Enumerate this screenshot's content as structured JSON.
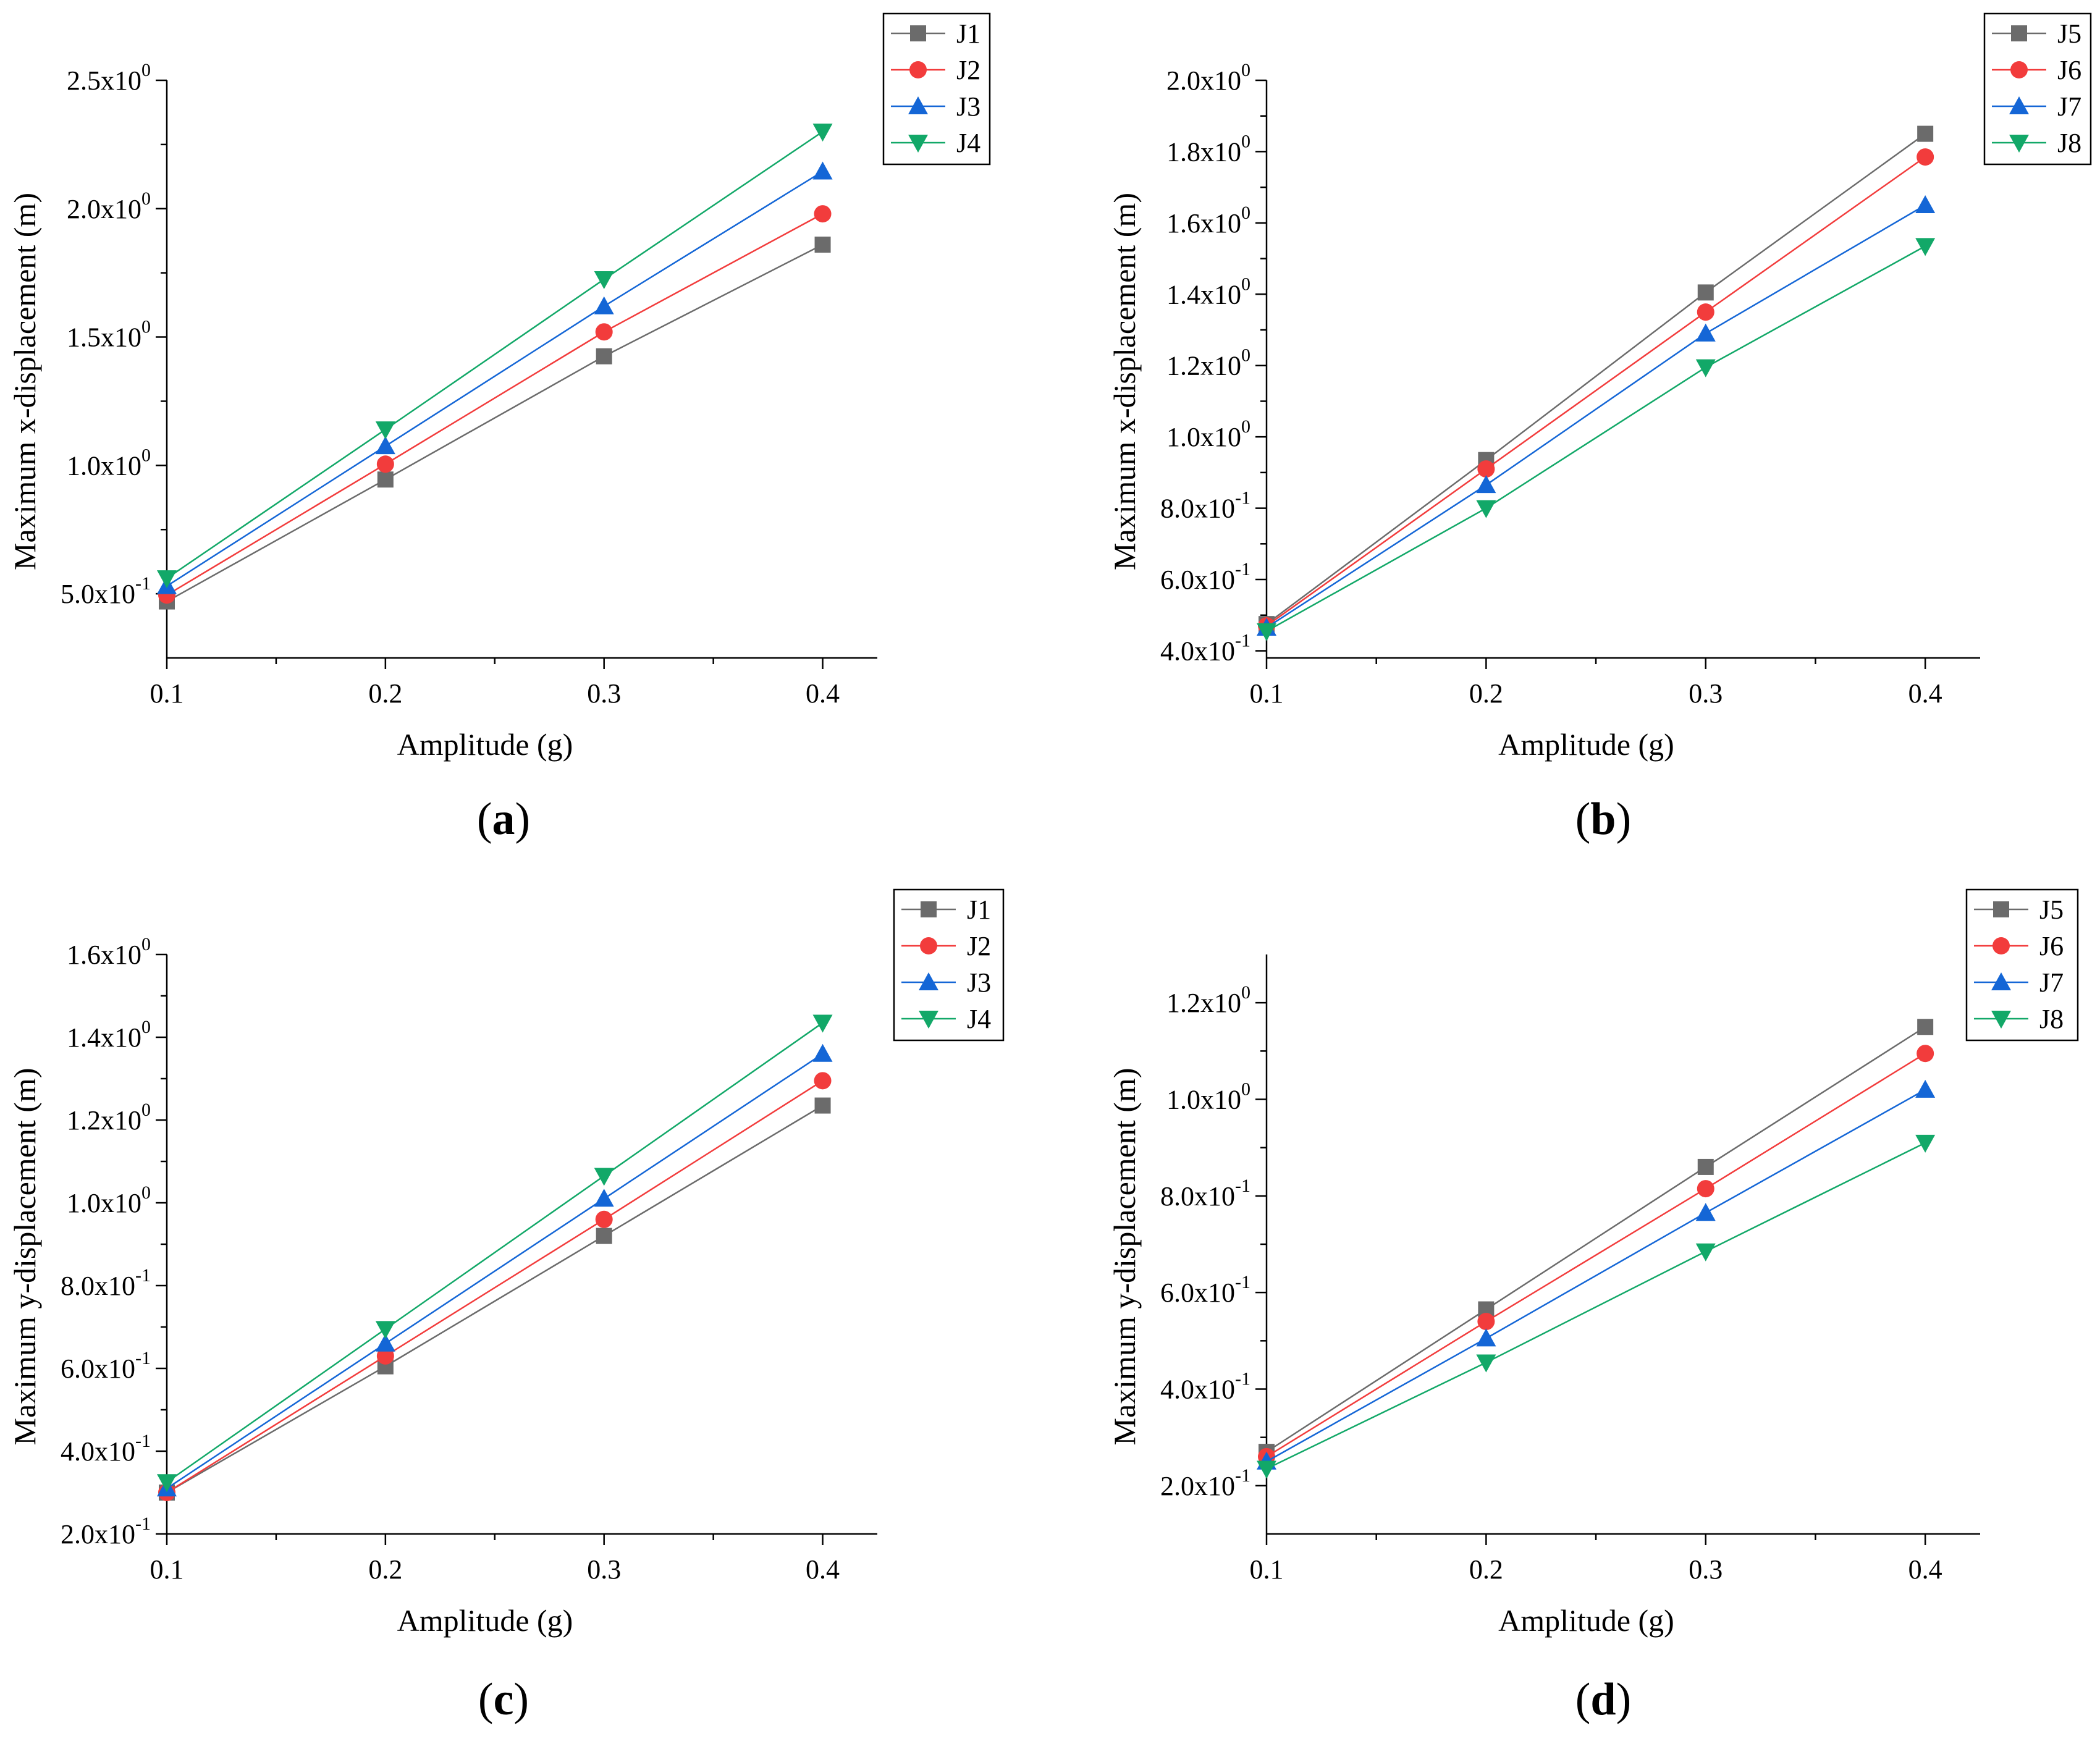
{
  "colors": {
    "J1": "#6b6b6b",
    "J2": "#f23c3c",
    "J3": "#1466d6",
    "J4": "#12a868",
    "J5": "#6b6b6b",
    "J6": "#f23c3c",
    "J7": "#1466d6",
    "J8": "#12a868"
  },
  "markers": {
    "J1": "square",
    "J2": "circle",
    "J3": "triangle-up",
    "J4": "triangle-down",
    "J5": "square",
    "J6": "circle",
    "J7": "triangle-up",
    "J8": "triangle-down"
  },
  "chart_data": [
    {
      "type": "line",
      "panel_label": "a",
      "xlabel": "Amplitude (g)",
      "ylabel": "Maximum x-displacement (m)",
      "x": [
        0.1,
        0.2,
        0.3,
        0.4
      ],
      "x_tick_labels": [
        "0.1",
        "0.2",
        "0.3",
        "0.4"
      ],
      "xlim": [
        0.1,
        0.425
      ],
      "ylim": [
        0.25,
        2.5
      ],
      "y_ticks": [
        {
          "value": 0.5,
          "mantissa": "5.0x10",
          "exponent": "-1"
        },
        {
          "value": 1.0,
          "mantissa": "1.0x10",
          "exponent": "0"
        },
        {
          "value": 1.5,
          "mantissa": "1.5x10",
          "exponent": "0"
        },
        {
          "value": 2.0,
          "mantissa": "2.0x10",
          "exponent": "0"
        },
        {
          "value": 2.5,
          "mantissa": "2.5x10",
          "exponent": "0"
        }
      ],
      "legend_position": "top-right",
      "series": [
        {
          "name": "J1",
          "values": [
            0.47,
            0.945,
            1.425,
            1.86
          ]
        },
        {
          "name": "J2",
          "values": [
            0.495,
            1.005,
            1.52,
            1.98
          ]
        },
        {
          "name": "J3",
          "values": [
            0.53,
            1.075,
            1.62,
            2.145
          ]
        },
        {
          "name": "J4",
          "values": [
            0.56,
            1.14,
            1.725,
            2.3
          ]
        }
      ]
    },
    {
      "type": "line",
      "panel_label": "b",
      "xlabel": "Amplitude (g)",
      "ylabel": "Maximum x-displacement (m)",
      "x": [
        0.1,
        0.2,
        0.3,
        0.4
      ],
      "x_tick_labels": [
        "0.1",
        "0.2",
        "0.3",
        "0.4"
      ],
      "xlim": [
        0.1,
        0.425
      ],
      "ylim": [
        0.38,
        2.0
      ],
      "y_ticks": [
        {
          "value": 0.4,
          "mantissa": "4.0x10",
          "exponent": "-1"
        },
        {
          "value": 0.6,
          "mantissa": "6.0x10",
          "exponent": "-1"
        },
        {
          "value": 0.8,
          "mantissa": "8.0x10",
          "exponent": "-1"
        },
        {
          "value": 1.0,
          "mantissa": "1.0x10",
          "exponent": "0"
        },
        {
          "value": 1.2,
          "mantissa": "1.2x10",
          "exponent": "0"
        },
        {
          "value": 1.4,
          "mantissa": "1.4x10",
          "exponent": "0"
        },
        {
          "value": 1.6,
          "mantissa": "1.6x10",
          "exponent": "0"
        },
        {
          "value": 1.8,
          "mantissa": "1.8x10",
          "exponent": "0"
        },
        {
          "value": 2.0,
          "mantissa": "2.0x10",
          "exponent": "0"
        }
      ],
      "legend_position": "top-right",
      "series": [
        {
          "name": "J5",
          "values": [
            0.475,
            0.935,
            1.405,
            1.85
          ]
        },
        {
          "name": "J6",
          "values": [
            0.47,
            0.91,
            1.35,
            1.785
          ]
        },
        {
          "name": "J7",
          "values": [
            0.465,
            0.865,
            1.29,
            1.65
          ]
        },
        {
          "name": "J8",
          "values": [
            0.455,
            0.8,
            1.195,
            1.535
          ]
        }
      ]
    },
    {
      "type": "line",
      "panel_label": "c",
      "xlabel": "Amplitude (g)",
      "ylabel": "Maximum y-displacement (m)",
      "x": [
        0.1,
        0.2,
        0.3,
        0.4
      ],
      "x_tick_labels": [
        "0.1",
        "0.2",
        "0.3",
        "0.4"
      ],
      "xlim": [
        0.1,
        0.425
      ],
      "ylim": [
        0.2,
        1.6
      ],
      "y_ticks": [
        {
          "value": 0.2,
          "mantissa": "2.0x10",
          "exponent": "-1"
        },
        {
          "value": 0.4,
          "mantissa": "4.0x10",
          "exponent": "-1"
        },
        {
          "value": 0.6,
          "mantissa": "6.0x10",
          "exponent": "-1"
        },
        {
          "value": 0.8,
          "mantissa": "8.0x10",
          "exponent": "-1"
        },
        {
          "value": 1.0,
          "mantissa": "1.0x10",
          "exponent": "0"
        },
        {
          "value": 1.2,
          "mantissa": "1.2x10",
          "exponent": "0"
        },
        {
          "value": 1.4,
          "mantissa": "1.4x10",
          "exponent": "0"
        },
        {
          "value": 1.6,
          "mantissa": "1.6x10",
          "exponent": "0"
        }
      ],
      "legend_position": "top-right",
      "series": [
        {
          "name": "J1",
          "values": [
            0.3,
            0.605,
            0.92,
            1.235
          ]
        },
        {
          "name": "J2",
          "values": [
            0.3,
            0.63,
            0.96,
            1.295
          ]
        },
        {
          "name": "J3",
          "values": [
            0.31,
            0.66,
            1.01,
            1.36
          ]
        },
        {
          "name": "J4",
          "values": [
            0.325,
            0.695,
            1.065,
            1.435
          ]
        }
      ]
    },
    {
      "type": "line",
      "panel_label": "d",
      "xlabel": "Amplitude (g)",
      "ylabel": "Maximum y-displacement (m)",
      "x": [
        0.1,
        0.2,
        0.3,
        0.4
      ],
      "x_tick_labels": [
        "0.1",
        "0.2",
        "0.3",
        "0.4"
      ],
      "xlim": [
        0.1,
        0.425
      ],
      "ylim": [
        0.1,
        1.3
      ],
      "y_ticks": [
        {
          "value": 0.2,
          "mantissa": "2.0x10",
          "exponent": "-1"
        },
        {
          "value": 0.4,
          "mantissa": "4.0x10",
          "exponent": "-1"
        },
        {
          "value": 0.6,
          "mantissa": "6.0x10",
          "exponent": "-1"
        },
        {
          "value": 0.8,
          "mantissa": "8.0x10",
          "exponent": "-1"
        },
        {
          "value": 1.0,
          "mantissa": "1.0x10",
          "exponent": "0"
        },
        {
          "value": 1.2,
          "mantissa": "1.2x10",
          "exponent": "0"
        }
      ],
      "legend_position": "top-right",
      "series": [
        {
          "name": "J5",
          "values": [
            0.27,
            0.565,
            0.86,
            1.15
          ]
        },
        {
          "name": "J6",
          "values": [
            0.26,
            0.54,
            0.815,
            1.095
          ]
        },
        {
          "name": "J7",
          "values": [
            0.25,
            0.505,
            0.765,
            1.02
          ]
        },
        {
          "name": "J8",
          "values": [
            0.235,
            0.455,
            0.685,
            0.91
          ]
        }
      ]
    }
  ]
}
